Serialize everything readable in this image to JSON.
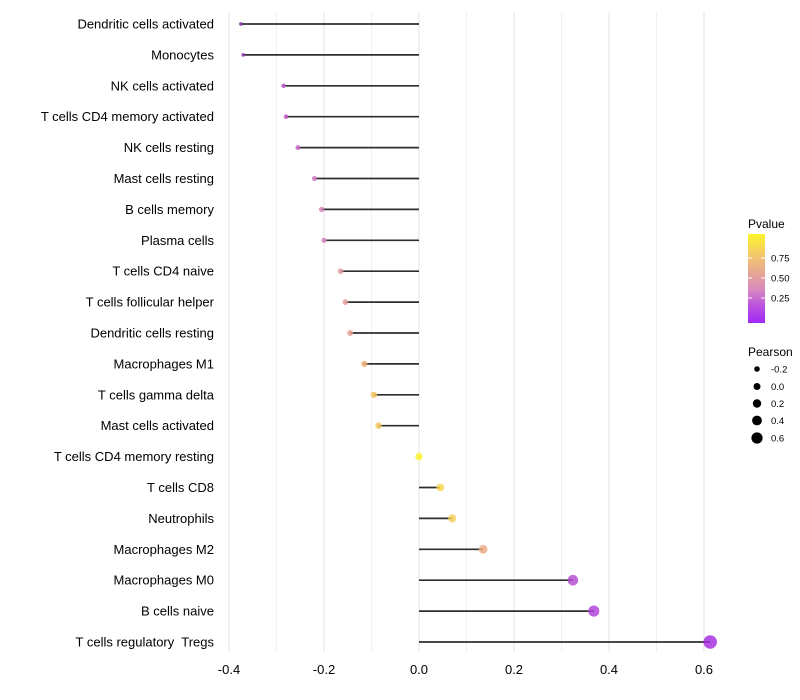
{
  "chart_data": {
    "type": "lollipop",
    "title": "",
    "xlabel": "",
    "ylabel": "",
    "grid": "vertical-only",
    "background": "#ffffff",
    "stem_color": "#2e2e2e",
    "xlim": [
      -0.415,
      0.62
    ],
    "x_ticks": [
      {
        "value": -0.4,
        "label": "-0.4"
      },
      {
        "value": -0.2,
        "label": "-0.2"
      },
      {
        "value": 0.0,
        "label": "0.0"
      },
      {
        "value": 0.2,
        "label": "0.2"
      },
      {
        "value": 0.4,
        "label": "0.4"
      },
      {
        "value": 0.6,
        "label": "0.6"
      }
    ],
    "minor_grid_step": 0.1,
    "baseline": 0.0,
    "rows": [
      {
        "label": "Dendritic cells activated",
        "pearson": -0.375,
        "pvalue": 0.08,
        "color": "#8A2BA8"
      },
      {
        "label": "Monocytes",
        "pearson": -0.37,
        "pvalue": 0.1,
        "color": "#9232B2"
      },
      {
        "label": "NK cells activated",
        "pearson": -0.285,
        "pvalue": 0.2,
        "color": "#B94FC2"
      },
      {
        "label": "T cells CD4 memory activated",
        "pearson": -0.28,
        "pvalue": 0.21,
        "color": "#BC52C6"
      },
      {
        "label": "NK cells resting",
        "pearson": -0.255,
        "pvalue": 0.24,
        "color": "#C45FC2"
      },
      {
        "label": "Mast cells resting",
        "pearson": -0.22,
        "pvalue": 0.33,
        "color": "#D277BE"
      },
      {
        "label": "B cells memory",
        "pearson": -0.205,
        "pvalue": 0.35,
        "color": "#D77FBC"
      },
      {
        "label": "Plasma cells",
        "pearson": -0.2,
        "pvalue": 0.36,
        "color": "#DB85BE"
      },
      {
        "label": "T cells CD4 naive",
        "pearson": -0.165,
        "pvalue": 0.45,
        "color": "#E49A9E"
      },
      {
        "label": "T cells follicular helper",
        "pearson": -0.155,
        "pvalue": 0.46,
        "color": "#E59D99"
      },
      {
        "label": "Dendritic cells resting",
        "pearson": -0.145,
        "pvalue": 0.48,
        "color": "#E7A18F"
      },
      {
        "label": "Macrophages M1",
        "pearson": -0.115,
        "pvalue": 0.58,
        "color": "#EDAF70"
      },
      {
        "label": "T cells gamma delta",
        "pearson": -0.095,
        "pvalue": 0.66,
        "color": "#F1C35E"
      },
      {
        "label": "Mast cells activated",
        "pearson": -0.085,
        "pvalue": 0.67,
        "color": "#F1C25E"
      },
      {
        "label": "T cells CD4 memory resting",
        "pearson": 0.0,
        "pvalue": 0.97,
        "color": "#FDF029"
      },
      {
        "label": "T cells CD8",
        "pearson": 0.045,
        "pvalue": 0.78,
        "color": "#F7D74B"
      },
      {
        "label": "Neutrophils",
        "pearson": 0.07,
        "pvalue": 0.72,
        "color": "#F4CE55"
      },
      {
        "label": "Macrophages M2",
        "pearson": 0.135,
        "pvalue": 0.52,
        "color": "#EDA981"
      },
      {
        "label": "Macrophages M0",
        "pearson": 0.324,
        "pvalue": 0.18,
        "color": "#B44CD0"
      },
      {
        "label": "B cells naive",
        "pearson": 0.368,
        "pvalue": 0.1,
        "color": "#AE40DB"
      },
      {
        "label": "T cells regulatory  Tregs",
        "pearson": 0.613,
        "pvalue": 0.03,
        "color": "#A52BE2"
      }
    ],
    "legend_position": "right",
    "legends": {
      "pvalue": {
        "title": "Pvalue",
        "ticks": [
          {
            "value": 0.75,
            "label": "0.75"
          },
          {
            "value": 0.5,
            "label": "0.50"
          },
          {
            "value": 0.25,
            "label": "0.25"
          }
        ],
        "gradient_stops": [
          {
            "pos": 0.0,
            "color": "#FCF32A"
          },
          {
            "pos": 0.22,
            "color": "#F5CB68"
          },
          {
            "pos": 0.45,
            "color": "#E6A496"
          },
          {
            "pos": 0.62,
            "color": "#D88BBE"
          },
          {
            "pos": 0.8,
            "color": "#BC53DE"
          },
          {
            "pos": 1.0,
            "color": "#A228F5"
          }
        ]
      },
      "pearson": {
        "title": "Pearson",
        "items": [
          {
            "label": "-0.2",
            "r": 2.8
          },
          {
            "label": "0.0",
            "r": 3.5
          },
          {
            "label": "0.2",
            "r": 4.2
          },
          {
            "label": "0.4",
            "r": 4.9
          },
          {
            "label": "0.6",
            "r": 5.6
          }
        ]
      }
    }
  }
}
